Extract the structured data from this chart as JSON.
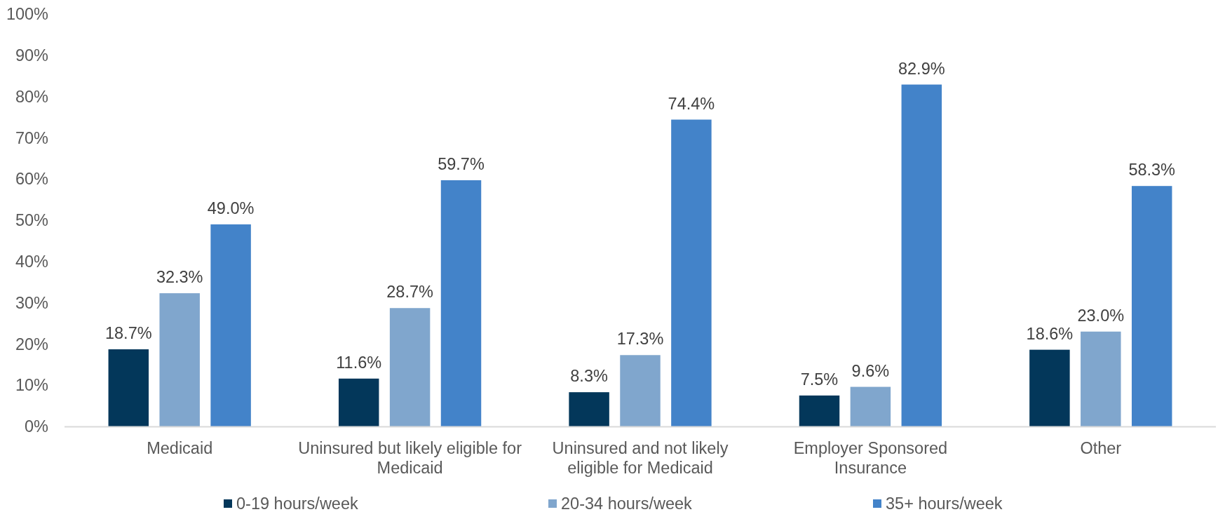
{
  "chart_data": {
    "type": "bar",
    "categories": [
      "Medicaid",
      "Uninsured but likely eligible for Medicaid",
      "Uninsured and not likely eligible for Medicaid",
      "Employer Sponsored Insurance",
      "Other"
    ],
    "series": [
      {
        "name": "0-19 hours/week",
        "color": "#03375a",
        "values": [
          18.7,
          11.6,
          8.3,
          7.5,
          18.6
        ],
        "value_labels": [
          "18.7%",
          "11.6%",
          "8.3%",
          "7.5%",
          "18.6%"
        ]
      },
      {
        "name": "20-34 hours/week",
        "color": "#80a6cd",
        "values": [
          32.3,
          28.7,
          17.3,
          9.6,
          23.0
        ],
        "value_labels": [
          "32.3%",
          "28.7%",
          "17.3%",
          "9.6%",
          "23.0%"
        ]
      },
      {
        "name": "35+ hours/week",
        "color": "#4383c9",
        "values": [
          49.0,
          59.7,
          74.4,
          82.9,
          58.3
        ],
        "value_labels": [
          "49.0%",
          "59.7%",
          "74.4%",
          "82.9%",
          "58.3%"
        ]
      }
    ],
    "ylim": [
      0,
      100
    ],
    "yticks": [
      {
        "value": 0,
        "label": "0%"
      },
      {
        "value": 10,
        "label": "10%"
      },
      {
        "value": 20,
        "label": "20%"
      },
      {
        "value": 30,
        "label": "30%"
      },
      {
        "value": 40,
        "label": "40%"
      },
      {
        "value": 50,
        "label": "50%"
      },
      {
        "value": 60,
        "label": "60%"
      },
      {
        "value": 70,
        "label": "70%"
      },
      {
        "value": 80,
        "label": "80%"
      },
      {
        "value": 90,
        "label": "90%"
      },
      {
        "value": 100,
        "label": "100%"
      }
    ],
    "legend": "bottom"
  }
}
